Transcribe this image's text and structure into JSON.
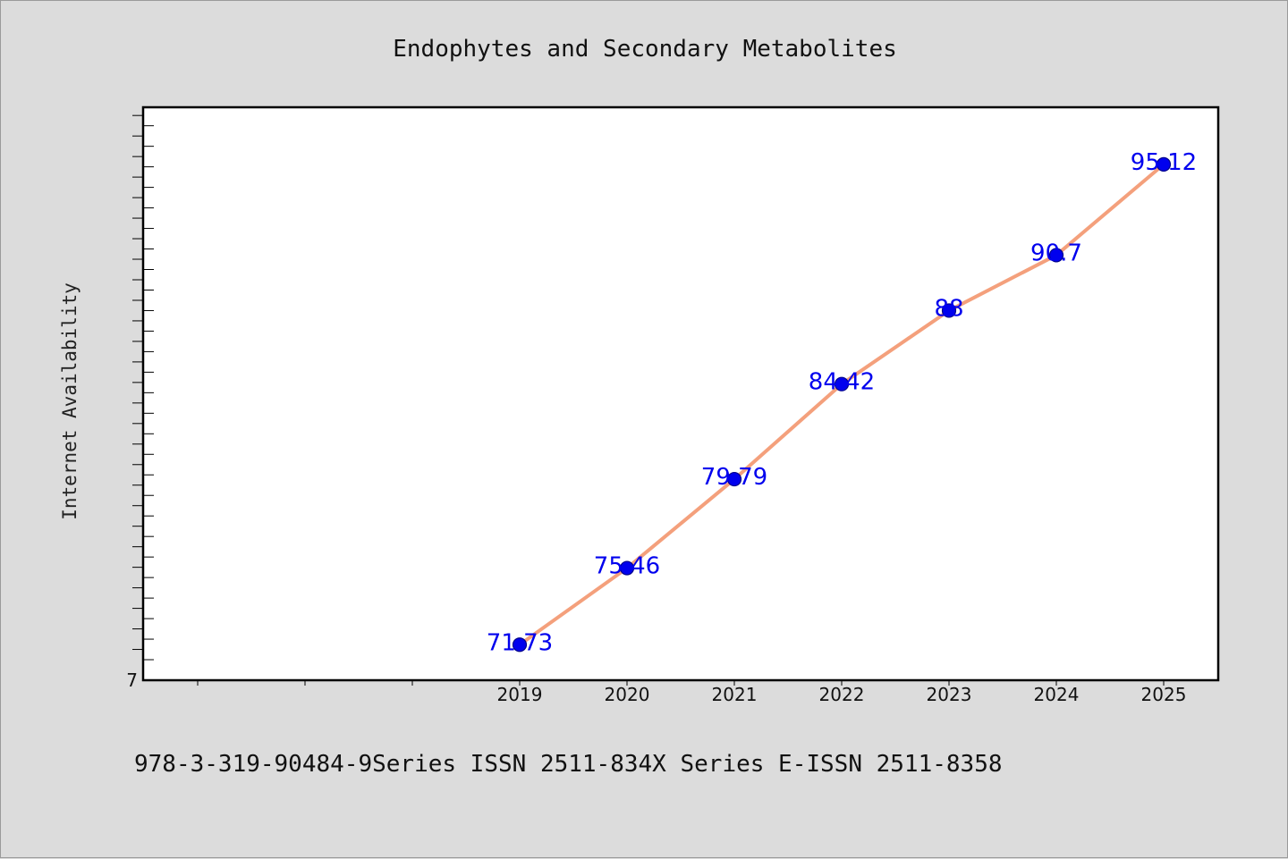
{
  "chart_data": {
    "type": "line",
    "title": "Endophytes and Secondary Metabolites",
    "ylabel": "Internet Availability",
    "xlabel": "",
    "x": [
      "2019",
      "2020",
      "2021",
      "2022",
      "2023",
      "2024",
      "2025"
    ],
    "series": [
      {
        "values": [
          71.73,
          75.46,
          79.79,
          84.42,
          88,
          90.7,
          95.12
        ]
      }
    ],
    "data_labels": [
      "71.73",
      "75.46",
      "79.79",
      "84.42",
      "88",
      "90.7",
      "95.12"
    ],
    "y_tick_labels": [
      "7"
    ],
    "ylim": [
      70,
      97.9
    ],
    "grid": false,
    "legend": "none",
    "colors": {
      "line": "#f4a07c",
      "marker": "#0000ee",
      "label": "#0000ee"
    }
  },
  "footer": {
    "text": "978-3-319-90484-9Series ISSN 2511-834X Series E-ISSN 2511-8358"
  }
}
